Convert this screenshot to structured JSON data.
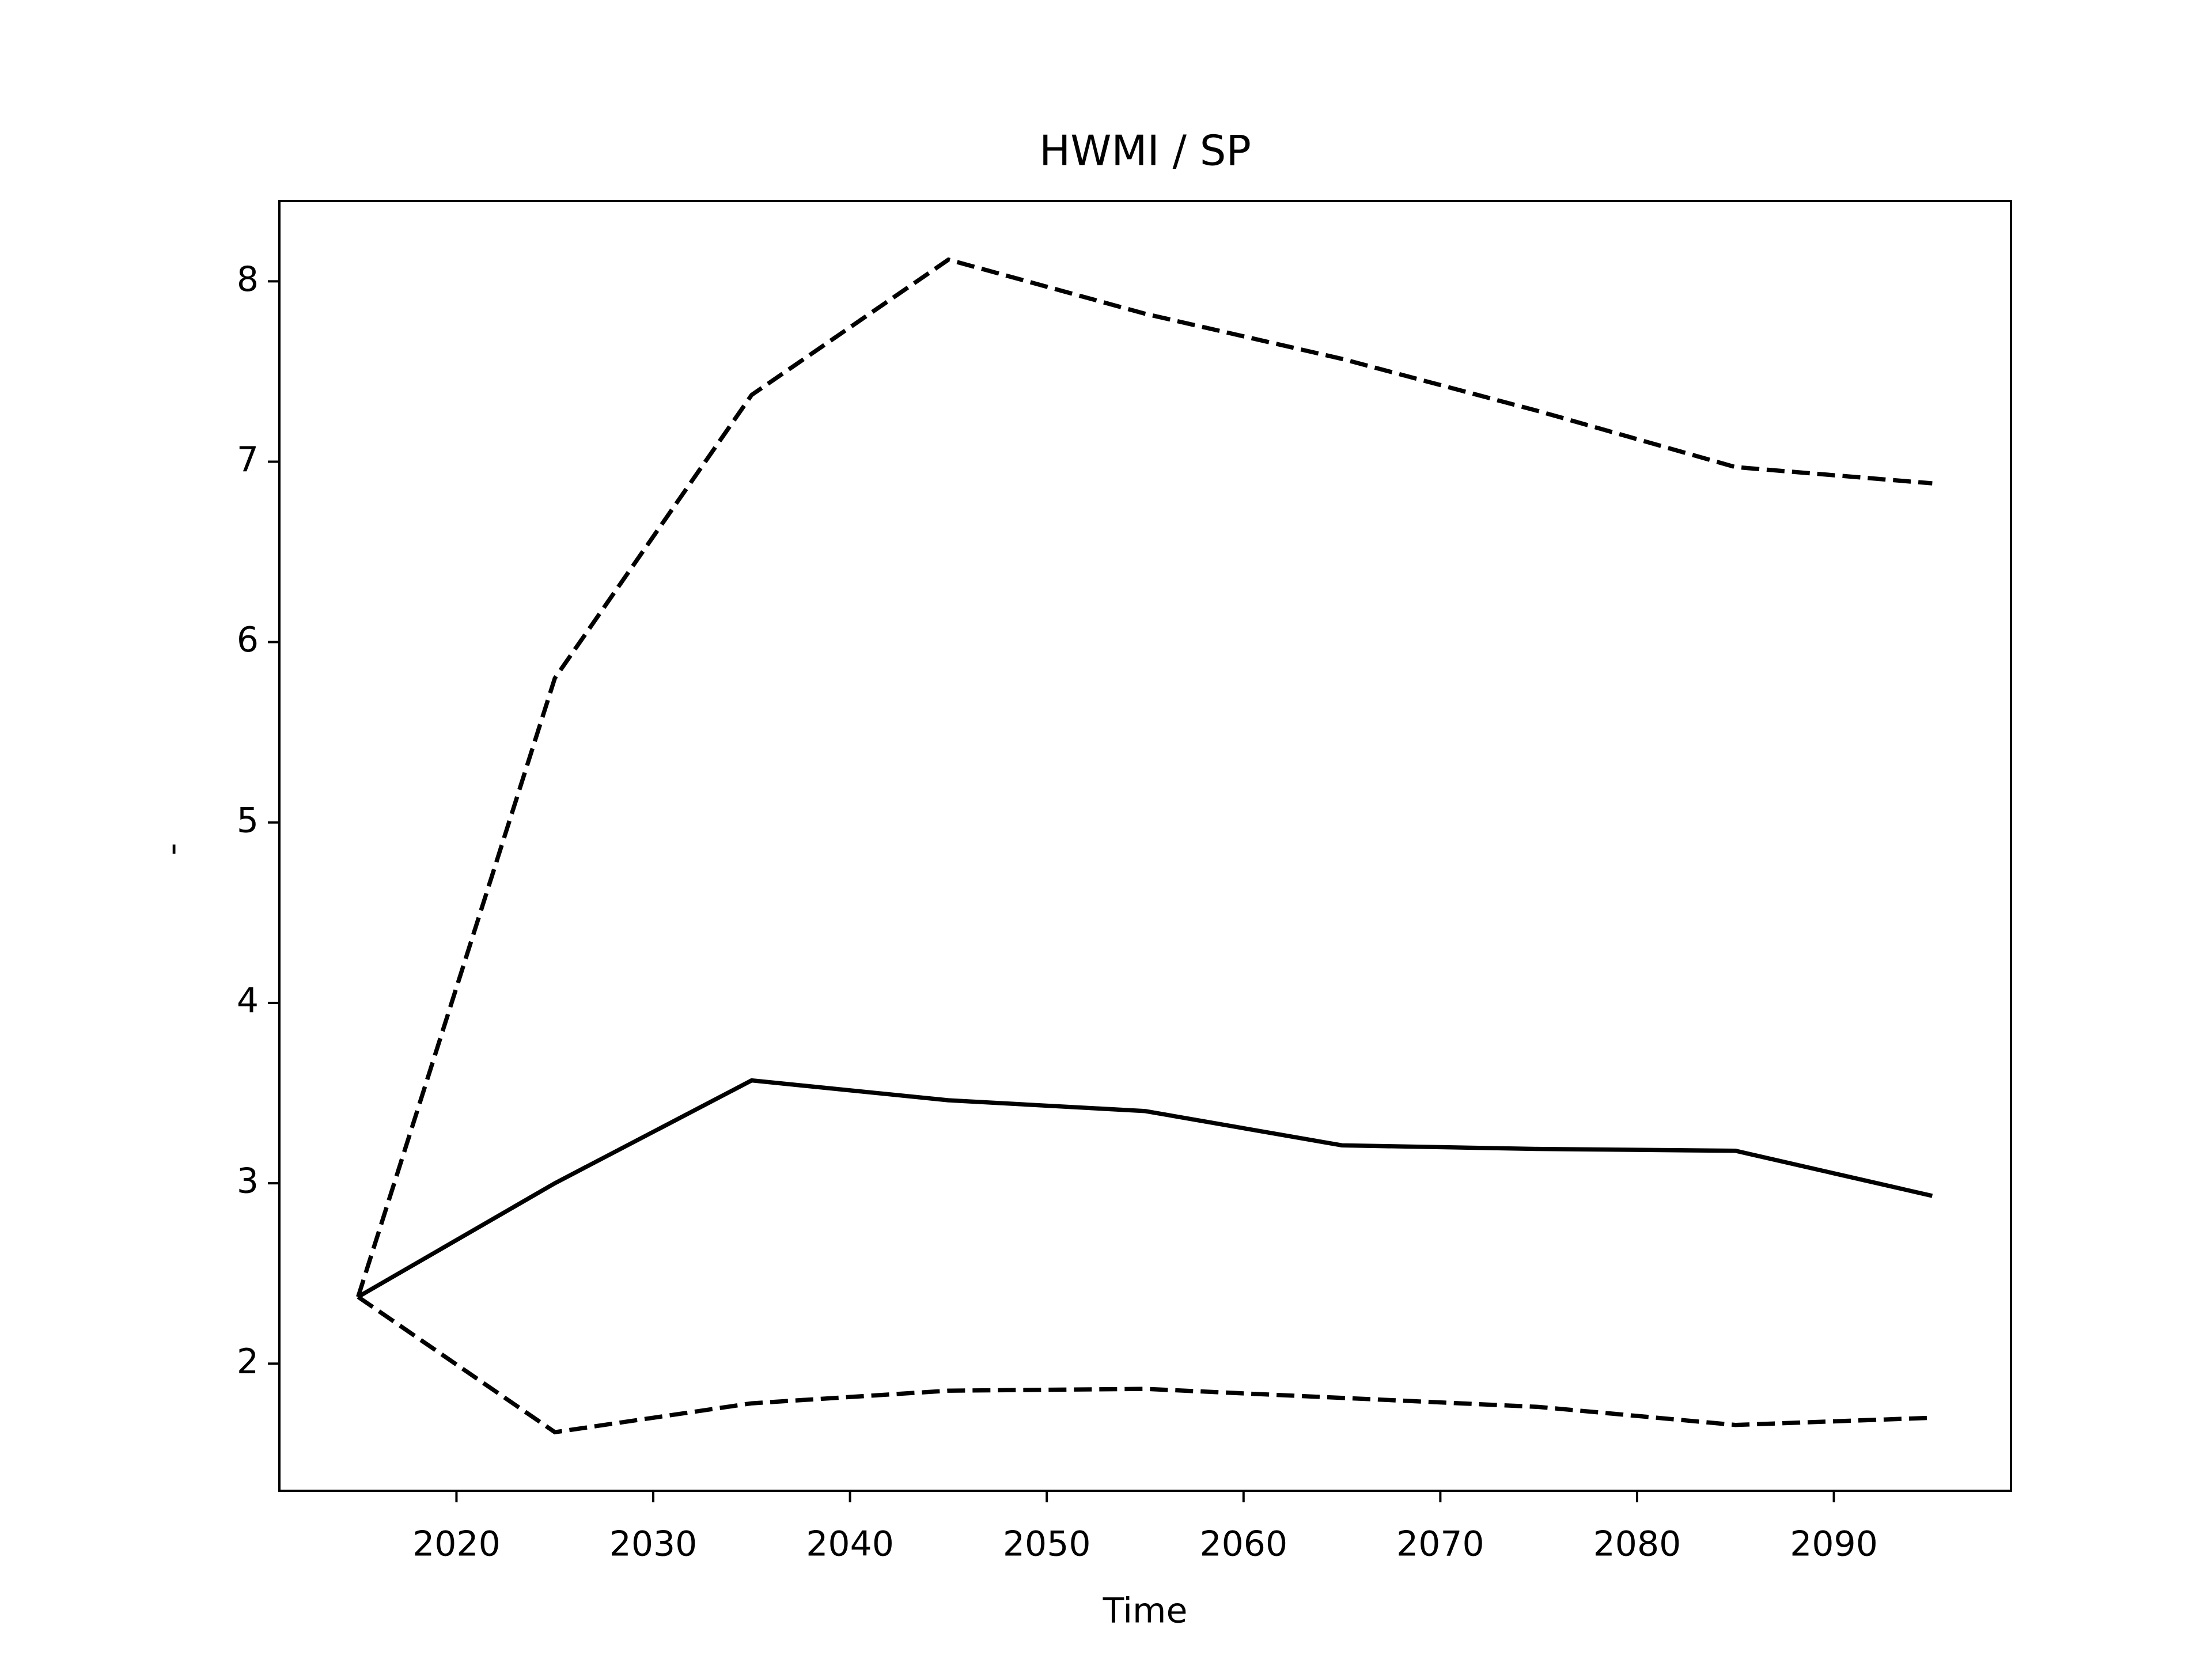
{
  "chart_data": {
    "type": "line",
    "title": "HWMI / SP",
    "x_label": "Time",
    "y_label": "-",
    "x": [
      2015,
      2025,
      2035,
      2045,
      2055,
      2065,
      2075,
      2085,
      2095
    ],
    "series": [
      {
        "color": "#000000",
        "linestyle": "solid",
        "values": [
          2.37,
          3.0,
          3.57,
          3.46,
          3.4,
          3.21,
          3.19,
          3.18,
          2.93
        ]
      },
      {
        "color": "#000000",
        "linestyle": "dashed",
        "values": [
          2.37,
          5.8,
          7.37,
          8.12,
          7.82,
          7.57,
          7.28,
          6.97,
          6.88
        ]
      },
      {
        "color": "#000000",
        "linestyle": "dashed",
        "values": [
          2.37,
          1.62,
          1.78,
          1.85,
          1.86,
          1.81,
          1.76,
          1.66,
          1.7
        ]
      }
    ],
    "xlim": [
      2011,
      2099
    ],
    "xticks": [
      2020,
      2030,
      2040,
      2050,
      2060,
      2070,
      2080,
      2090
    ],
    "ylim": [
      1.295,
      8.445
    ],
    "yticks": [
      2,
      3,
      4,
      5,
      6,
      7,
      8
    ],
    "grid": false
  }
}
